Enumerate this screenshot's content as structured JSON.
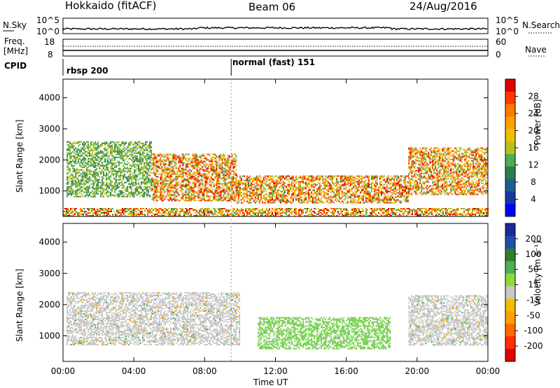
{
  "header": {
    "station": "Hokkaido (fitACF)",
    "beam": "Beam 06",
    "date": "24/Aug/2016"
  },
  "noise_panel": {
    "left_label": "N.Sky",
    "right_label": "N.Search",
    "left_ticks": [
      "10^5",
      "10^0"
    ],
    "right_ticks": [
      "10^5",
      "10^0"
    ]
  },
  "freq_panel": {
    "left_label_line1": "Freq.",
    "left_label_line2": "[MHz]",
    "right_label": "Nave",
    "left_ticks": [
      "18",
      "8"
    ],
    "right_ticks": [
      "60",
      "0"
    ]
  },
  "cpid_panel": {
    "label": "CPID",
    "segments": [
      {
        "name": "rbsp 200",
        "start_hour": 0
      },
      {
        "name": "normal (fast) 151",
        "start_hour": 9.5
      }
    ]
  },
  "chart_data": [
    {
      "type": "heatmap",
      "name": "power",
      "ylabel": "Slant Range [km]",
      "xlabel": "",
      "xlim_hours": [
        0,
        24
      ],
      "ylim_km": [
        180,
        4600
      ],
      "yticks": [
        1000,
        2000,
        3000,
        4000
      ],
      "colorbar": {
        "label": "Power [dB]",
        "ticks": [
          "28",
          "24",
          "20",
          "16",
          "12",
          "8",
          "4"
        ],
        "colors": [
          "#e00000",
          "#ff3a00",
          "#ff7a00",
          "#ffa000",
          "#f0c000",
          "#b8c020",
          "#4caf50",
          "#2e7d4f",
          "#1f5f8f",
          "#123aa0",
          "#0000ff"
        ]
      },
      "regions": [
        {
          "label": "main red/orange band",
          "start_hour": 5.0,
          "end_hour": 9.8,
          "range_km": [
            700,
            2200
          ]
        },
        {
          "label": "mixed green echoes",
          "start_hour": 0.2,
          "end_hour": 5.0,
          "range_km": [
            800,
            2600
          ]
        },
        {
          "label": "midday red band",
          "start_hour": 9.8,
          "end_hour": 19.5,
          "range_km": [
            600,
            1500
          ]
        },
        {
          "label": "late red echoes",
          "start_hour": 19.5,
          "end_hour": 24.0,
          "range_km": [
            900,
            2400
          ]
        },
        {
          "label": "near-range band",
          "start_hour": 0,
          "end_hour": 24,
          "range_km": [
            200,
            450
          ]
        }
      ]
    },
    {
      "type": "heatmap",
      "name": "velocity",
      "ylabel": "Slant Range [km]",
      "xlabel": "Time UT",
      "xlim_hours": [
        0,
        24
      ],
      "xticks": [
        "00:00",
        "04:00",
        "08:00",
        "12:00",
        "16:00",
        "20:00",
        "00:00"
      ],
      "ylim_km": [
        180,
        4600
      ],
      "yticks": [
        1000,
        2000,
        3000,
        4000
      ],
      "colorbar": {
        "label": "Velocity [m s⁻¹]",
        "ticks": [
          "200",
          "100",
          "50",
          "15",
          "-15",
          "-50",
          "-100",
          "-200"
        ],
        "colors": [
          "#1a2a9a",
          "#1f4fa8",
          "#2e7d32",
          "#4caf50",
          "#8bdc3a",
          "#c8c8c8",
          "#f0c000",
          "#ffa000",
          "#ff6a00",
          "#ff3000",
          "#e00000"
        ]
      },
      "regions": [
        {
          "label": "grey low-velocity echoes",
          "start_hour": 0.2,
          "end_hour": 10.0,
          "range_km": [
            700,
            2400
          ]
        },
        {
          "label": "green positive velocity",
          "start_hour": 11.0,
          "end_hour": 18.5,
          "range_km": [
            600,
            1600
          ]
        },
        {
          "label": "grey late echoes",
          "start_hour": 19.5,
          "end_hour": 24.0,
          "range_km": [
            700,
            2300
          ]
        }
      ]
    }
  ]
}
